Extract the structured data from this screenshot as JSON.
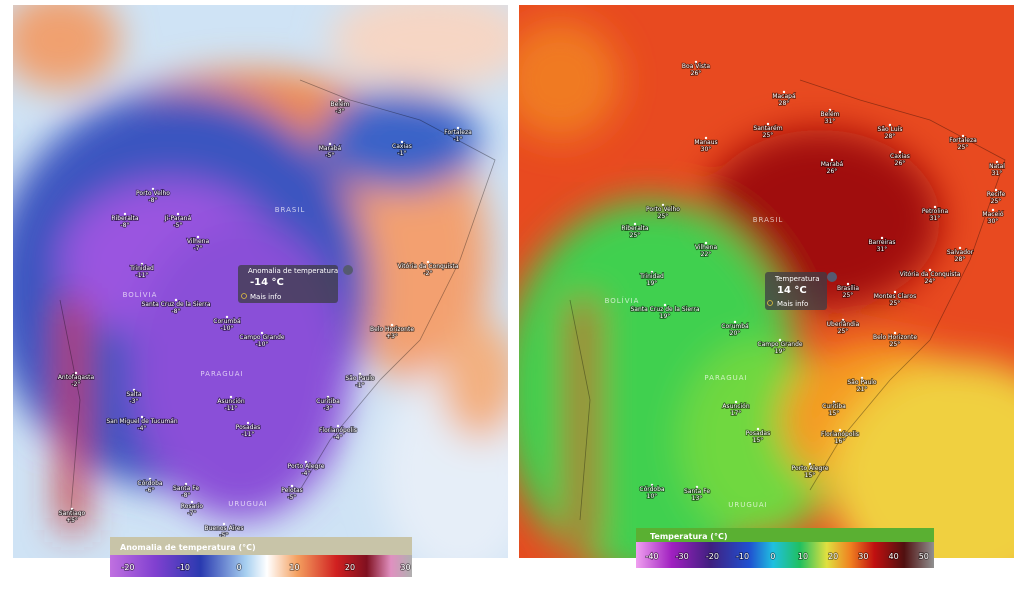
{
  "left_map": {
    "popup": {
      "title": "Anomalia de temperatura",
      "value": "-14 °C",
      "more": "Mais info"
    },
    "countries": [
      "BRASIL",
      "BOLÍVIA",
      "PARAGUAI",
      "URUGUAI"
    ],
    "legend": {
      "title": "Anomalia de temperatura (°C)",
      "ticks": [
        -20,
        -10,
        0,
        10,
        20,
        30
      ]
    },
    "cities": [
      {
        "name": "Belém",
        "value": "-3°"
      },
      {
        "name": "Marabá",
        "value": "-5°"
      },
      {
        "name": "Caxias",
        "value": "-1°"
      },
      {
        "name": "Fortaleza",
        "value": "-1°"
      },
      {
        "name": "Porto Velho",
        "value": "-8°"
      },
      {
        "name": "Riberalta",
        "value": "-8°"
      },
      {
        "name": "Ji-Paraná",
        "value": "-5°"
      },
      {
        "name": "Vilhena",
        "value": "-7°"
      },
      {
        "name": "Trinidad",
        "value": "-11°"
      },
      {
        "name": "Santa Cruz de la Sierra",
        "value": "-8°"
      },
      {
        "name": "Corumbá",
        "value": "-10°"
      },
      {
        "name": "Campo Grande",
        "value": "-10°"
      },
      {
        "name": "Belo Horizonte",
        "value": "+3°"
      },
      {
        "name": "Vitória da Conquista",
        "value": "-2°"
      },
      {
        "name": "São Paulo",
        "value": "-1°"
      },
      {
        "name": "Asunción",
        "value": "-11°"
      },
      {
        "name": "Curitiba",
        "value": "-3°"
      },
      {
        "name": "Posadas",
        "value": "-11°"
      },
      {
        "name": "Florianópolis",
        "value": "-4°"
      },
      {
        "name": "Porto Alegre",
        "value": "-4°"
      },
      {
        "name": "Córdoba",
        "value": "-6°"
      },
      {
        "name": "Santa Fe",
        "value": "-8°"
      },
      {
        "name": "Rosario",
        "value": "-7°"
      },
      {
        "name": "Buenos Aires",
        "value": "-5°"
      },
      {
        "name": "Pelotas",
        "value": "-5°"
      },
      {
        "name": "Antofagasta",
        "value": "-2°"
      },
      {
        "name": "Salta",
        "value": "-3°"
      },
      {
        "name": "San Miguel de Tucumán",
        "value": "-4°"
      },
      {
        "name": "Santiago",
        "value": "+5°"
      }
    ]
  },
  "right_map": {
    "popup": {
      "title": "Temperatura",
      "value": "14 °C",
      "more": "Mais info"
    },
    "countries": [
      "BRASIL",
      "BOLÍVIA",
      "PARAGUAI",
      "URUGUAI"
    ],
    "legend": {
      "title": "Temperatura (°C)",
      "ticks": [
        -40,
        -30,
        -20,
        -10,
        0,
        10,
        20,
        30,
        40,
        50
      ]
    },
    "cities": [
      {
        "name": "Boa Vista",
        "value": "26°"
      },
      {
        "name": "Macapá",
        "value": "28°"
      },
      {
        "name": "Belém",
        "value": "31°"
      },
      {
        "name": "São Luís",
        "value": "28°"
      },
      {
        "name": "Fortaleza",
        "value": "25°"
      },
      {
        "name": "Manaus",
        "value": "30°"
      },
      {
        "name": "Santarém",
        "value": "25°"
      },
      {
        "name": "Marabá",
        "value": "26°"
      },
      {
        "name": "Caxias",
        "value": "26°"
      },
      {
        "name": "Natal",
        "value": "31°"
      },
      {
        "name": "Recife",
        "value": "25°"
      },
      {
        "name": "Porto Velho",
        "value": "25°"
      },
      {
        "name": "Riberalta",
        "value": "25°"
      },
      {
        "name": "Vilhena",
        "value": "22°"
      },
      {
        "name": "Petrolina",
        "value": "31°"
      },
      {
        "name": "Barreiras",
        "value": "31°"
      },
      {
        "name": "Salvador",
        "value": "28°"
      },
      {
        "name": "Trinidad",
        "value": "19°"
      },
      {
        "name": "Brasília",
        "value": "25°"
      },
      {
        "name": "Montes Claros",
        "value": "25°"
      },
      {
        "name": "Santa Cruz de la Sierra",
        "value": "19°"
      },
      {
        "name": "Corumbá",
        "value": "20°"
      },
      {
        "name": "Uberlândia",
        "value": "25°"
      },
      {
        "name": "Campo Grande",
        "value": "19°"
      },
      {
        "name": "Belo Horizonte",
        "value": "25°"
      },
      {
        "name": "São Paulo",
        "value": "21°"
      },
      {
        "name": "Asunción",
        "value": "17°"
      },
      {
        "name": "Posadas",
        "value": "15°"
      },
      {
        "name": "Curitiba",
        "value": "15°"
      },
      {
        "name": "Florianópolis",
        "value": "16°"
      },
      {
        "name": "Porto Alegre",
        "value": "15°"
      },
      {
        "name": "Córdoba",
        "value": "10°"
      },
      {
        "name": "Santa Fe",
        "value": "13°"
      },
      {
        "name": "Vitória da Conquista",
        "value": "24°"
      },
      {
        "name": "Maceió",
        "value": "30°"
      }
    ]
  }
}
